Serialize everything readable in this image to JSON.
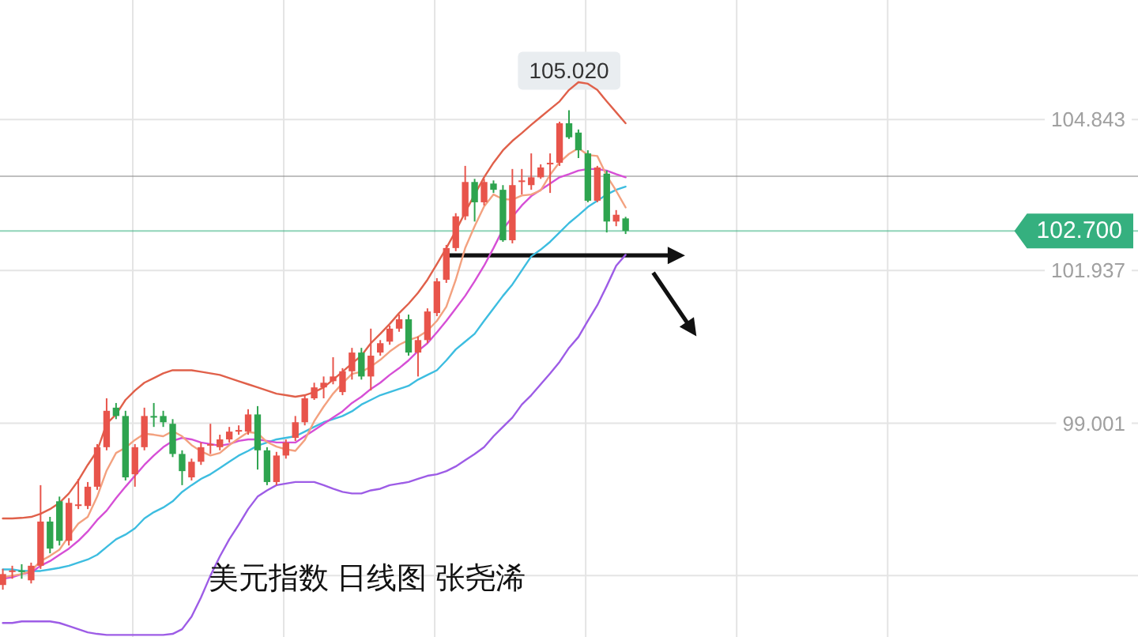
{
  "chart_data": {
    "type": "candlestick",
    "title": "美元指数 日线图 张尧浠",
    "categories": [
      null,
      null,
      null,
      null,
      null,
      null,
      null,
      null,
      null,
      null,
      null,
      null,
      null,
      null,
      null,
      null,
      null,
      null,
      null,
      null,
      null,
      null,
      null,
      null,
      null,
      null,
      null,
      null,
      null,
      null,
      null,
      null,
      null,
      null,
      null,
      null,
      null,
      null,
      null,
      null,
      null,
      null,
      null,
      null,
      null,
      null,
      null,
      null,
      null,
      null,
      null,
      null,
      null,
      null,
      null,
      null,
      null,
      null,
      null,
      null,
      null,
      null,
      null,
      null,
      null,
      null,
      null
    ],
    "ohlc": [
      [
        95.89,
        96.2,
        95.8,
        96.1
      ],
      [
        96.14,
        96.26,
        96.01,
        96.17
      ],
      [
        96.17,
        96.29,
        96.01,
        96.14
      ],
      [
        95.98,
        96.32,
        95.92,
        96.26
      ],
      [
        96.26,
        97.81,
        96.2,
        97.11
      ],
      [
        97.11,
        97.2,
        96.5,
        96.59
      ],
      [
        97.5,
        97.59,
        96.65,
        96.74
      ],
      [
        96.74,
        97.56,
        96.65,
        97.47
      ],
      [
        97.41,
        97.93,
        97.35,
        97.44
      ],
      [
        97.41,
        97.87,
        97.35,
        97.78
      ],
      [
        97.78,
        98.6,
        97.72,
        98.54
      ],
      [
        98.54,
        99.48,
        98.48,
        99.24
      ],
      [
        99.3,
        99.39,
        99.08,
        99.14
      ],
      [
        99.14,
        99.24,
        97.9,
        97.96
      ],
      [
        98.02,
        98.6,
        97.78,
        98.54
      ],
      [
        98.54,
        99.3,
        98.48,
        99.14
      ],
      [
        99.14,
        99.39,
        98.93,
        99.11
      ],
      [
        99.14,
        99.24,
        98.93,
        99.02
      ],
      [
        98.99,
        99.08,
        98.35,
        98.41
      ],
      [
        98.41,
        98.48,
        97.81,
        98.08
      ],
      [
        97.96,
        98.32,
        97.9,
        98.26
      ],
      [
        98.26,
        98.63,
        98.2,
        98.54
      ],
      [
        98.57,
        98.99,
        98.41,
        98.6
      ],
      [
        98.54,
        98.78,
        98.48,
        98.69
      ],
      [
        98.69,
        98.93,
        98.63,
        98.84
      ],
      [
        98.84,
        98.96,
        98.78,
        98.87
      ],
      [
        98.84,
        99.27,
        98.78,
        99.17
      ],
      [
        99.17,
        99.33,
        98.11,
        98.48
      ],
      [
        98.48,
        98.54,
        97.81,
        97.87
      ],
      [
        97.87,
        98.45,
        97.81,
        98.38
      ],
      [
        98.38,
        98.69,
        98.32,
        98.63
      ],
      [
        98.72,
        99.14,
        98.66,
        99.02
      ],
      [
        99.02,
        99.54,
        98.96,
        99.48
      ],
      [
        99.48,
        99.78,
        99.45,
        99.69
      ],
      [
        99.69,
        99.9,
        99.48,
        99.78
      ],
      [
        99.81,
        100.27,
        99.75,
        99.9
      ],
      [
        99.6,
        100.06,
        99.54,
        100.0
      ],
      [
        100.0,
        100.45,
        99.84,
        100.36
      ],
      [
        100.36,
        100.45,
        99.84,
        99.9
      ],
      [
        99.9,
        100.82,
        99.63,
        100.3
      ],
      [
        100.36,
        100.6,
        100.3,
        100.54
      ],
      [
        100.57,
        100.88,
        100.51,
        100.82
      ],
      [
        100.82,
        101.09,
        100.76,
        101.0
      ],
      [
        101.0,
        101.09,
        100.3,
        100.36
      ],
      [
        100.36,
        100.67,
        99.9,
        100.6
      ],
      [
        100.6,
        101.21,
        100.54,
        101.15
      ],
      [
        101.12,
        101.79,
        101.06,
        101.73
      ],
      [
        101.76,
        102.43,
        101.7,
        102.37
      ],
      [
        102.37,
        103.04,
        102.31,
        102.98
      ],
      [
        102.98,
        103.95,
        102.91,
        103.64
      ],
      [
        103.64,
        103.7,
        102.88,
        103.25
      ],
      [
        103.25,
        103.7,
        103.19,
        103.64
      ],
      [
        103.61,
        103.67,
        103.43,
        103.49
      ],
      [
        103.49,
        103.58,
        102.49,
        102.52
      ],
      [
        102.52,
        103.89,
        102.46,
        103.58
      ],
      [
        103.64,
        103.89,
        103.4,
        103.67
      ],
      [
        103.58,
        104.19,
        103.49,
        103.73
      ],
      [
        103.73,
        103.98,
        103.7,
        103.92
      ],
      [
        103.98,
        104.19,
        103.43,
        104.01
      ],
      [
        104.01,
        104.8,
        103.95,
        104.77
      ],
      [
        104.77,
        105.02,
        104.47,
        104.5
      ],
      [
        104.59,
        104.65,
        104.1,
        104.25
      ],
      [
        104.19,
        104.25,
        103.25,
        103.28
      ],
      [
        103.28,
        103.95,
        103.25,
        103.92
      ],
      [
        103.8,
        103.86,
        102.67,
        102.88
      ],
      [
        102.88,
        103.1,
        102.79,
        103.01
      ],
      [
        102.94,
        102.97,
        102.64,
        102.7
      ]
    ],
    "colors": [
      "#e8544b",
      "#e8544b",
      "#2ea44f",
      "#e8544b",
      "#e8544b",
      "#2ea44f",
      "#2ea44f",
      "#e8544b",
      "#e8544b",
      "#e8544b",
      "#e8544b",
      "#e8544b",
      "#2ea44f",
      "#2ea44f",
      "#e8544b",
      "#e8544b",
      "#2ea44f",
      "#2ea44f",
      "#2ea44f",
      "#2ea44f",
      "#e8544b",
      "#e8544b",
      "#e8544b",
      "#e8544b",
      "#e8544b",
      "#e8544b",
      "#e8544b",
      "#2ea44f",
      "#2ea44f",
      "#e8544b",
      "#e8544b",
      "#e8544b",
      "#e8544b",
      "#e8544b",
      "#e8544b",
      "#e8544b",
      "#e8544b",
      "#e8544b",
      "#2ea44f",
      "#e8544b",
      "#e8544b",
      "#e8544b",
      "#e8544b",
      "#2ea44f",
      "#e8544b",
      "#e8544b",
      "#e8544b",
      "#e8544b",
      "#e8544b",
      "#e8544b",
      "#2ea44f",
      "#e8544b",
      "#2ea44f",
      "#2ea44f",
      "#e8544b",
      "#e8544b",
      "#e8544b",
      "#e8544b",
      "#e8544b",
      "#e8544b",
      "#2ea44f",
      "#2ea44f",
      "#2ea44f",
      "#e8544b",
      "#2ea44f",
      "#e8544b",
      "#2ea44f"
    ],
    "series": [
      {
        "type": "line",
        "color": "#e0604a",
        "values": [
          97.17,
          97.17,
          97.18,
          97.2,
          97.26,
          97.35,
          97.47,
          97.65,
          97.9,
          98.2,
          98.47,
          98.99,
          99.17,
          99.45,
          99.63,
          99.78,
          99.87,
          99.96,
          100.02,
          100.02,
          100.02,
          99.99,
          99.96,
          99.93,
          99.87,
          99.81,
          99.75,
          99.69,
          99.63,
          99.57,
          99.54,
          99.51,
          99.54,
          99.6,
          99.69,
          99.84,
          99.99,
          100.15,
          100.3,
          100.54,
          100.72,
          100.91,
          101.12,
          101.3,
          101.51,
          101.76,
          102.06,
          102.37,
          102.7,
          103.06,
          103.4,
          103.73,
          104.01,
          104.25,
          104.43,
          104.58,
          104.74,
          104.89,
          105.04,
          105.19,
          105.41,
          105.56,
          105.53,
          105.41,
          105.19,
          104.98,
          104.77
        ]
      },
      {
        "type": "line",
        "color": "#9d5ce6",
        "values": [
          95.16,
          95.16,
          95.19,
          95.19,
          95.19,
          95.19,
          95.16,
          95.1,
          95.04,
          94.98,
          94.95,
          94.93,
          94.93,
          94.93,
          94.93,
          94.93,
          94.93,
          94.93,
          94.95,
          95.04,
          95.28,
          95.65,
          96.07,
          96.44,
          96.77,
          97.05,
          97.35,
          97.59,
          97.71,
          97.81,
          97.84,
          97.87,
          97.87,
          97.87,
          97.81,
          97.74,
          97.68,
          97.65,
          97.65,
          97.71,
          97.74,
          97.81,
          97.84,
          97.87,
          97.93,
          97.99,
          98.02,
          98.08,
          98.17,
          98.29,
          98.41,
          98.54,
          98.75,
          98.93,
          99.11,
          99.36,
          99.54,
          99.75,
          99.96,
          100.18,
          100.45,
          100.66,
          100.97,
          101.27,
          101.64,
          102.03,
          102.24
        ]
      },
      {
        "type": "line",
        "color": "#3dbde0",
        "values": [
          96.19,
          96.19,
          96.16,
          96.16,
          96.16,
          96.19,
          96.22,
          96.26,
          96.32,
          96.38,
          96.47,
          96.62,
          96.77,
          96.86,
          96.98,
          97.17,
          97.29,
          97.38,
          97.5,
          97.68,
          97.81,
          97.93,
          98.02,
          98.14,
          98.26,
          98.38,
          98.47,
          98.57,
          98.63,
          98.69,
          98.72,
          98.75,
          98.84,
          98.93,
          99.02,
          99.08,
          99.14,
          99.23,
          99.36,
          99.45,
          99.54,
          99.6,
          99.66,
          99.72,
          99.84,
          99.93,
          100.02,
          100.21,
          100.42,
          100.57,
          100.72,
          100.97,
          101.21,
          101.45,
          101.67,
          101.94,
          102.21,
          102.34,
          102.49,
          102.67,
          102.85,
          103.0,
          103.16,
          103.28,
          103.4,
          103.49,
          103.55
        ]
      },
      {
        "type": "line",
        "color": "#d64fd6",
        "values": [
          96.01,
          96.04,
          96.1,
          96.13,
          96.26,
          96.35,
          96.47,
          96.59,
          96.74,
          96.92,
          97.14,
          97.32,
          97.56,
          97.78,
          97.99,
          98.2,
          98.38,
          98.54,
          98.66,
          98.72,
          98.69,
          98.63,
          98.6,
          98.57,
          98.6,
          98.66,
          98.69,
          98.69,
          98.66,
          98.63,
          98.63,
          98.63,
          98.75,
          98.87,
          98.99,
          99.11,
          99.23,
          99.39,
          99.51,
          99.66,
          99.78,
          99.93,
          100.06,
          100.21,
          100.39,
          100.54,
          100.75,
          100.97,
          101.21,
          101.45,
          101.73,
          102.03,
          102.37,
          102.73,
          102.97,
          103.19,
          103.37,
          103.49,
          103.61,
          103.73,
          103.79,
          103.86,
          103.89,
          103.89,
          103.86,
          103.79,
          103.73
        ]
      },
      {
        "type": "line",
        "color": "#f3a17f",
        "values": [
          96.04,
          96.07,
          96.1,
          96.16,
          96.35,
          96.45,
          96.57,
          96.83,
          97.07,
          97.2,
          97.59,
          98.09,
          98.43,
          98.53,
          98.68,
          98.8,
          98.78,
          98.75,
          98.85,
          98.75,
          98.58,
          98.46,
          98.38,
          98.43,
          98.58,
          98.71,
          98.83,
          98.81,
          98.64,
          98.55,
          98.5,
          98.47,
          98.68,
          99.04,
          99.32,
          99.57,
          99.77,
          99.95,
          99.99,
          100.09,
          100.22,
          100.38,
          100.51,
          100.6,
          100.66,
          100.78,
          100.97,
          101.24,
          101.76,
          102.37,
          102.79,
          103.17,
          103.4,
          103.31,
          103.3,
          103.38,
          103.4,
          103.48,
          103.78,
          104.02,
          104.18,
          104.29,
          104.16,
          104.14,
          103.76,
          103.47,
          103.15
        ]
      }
    ],
    "ylim": [
      94.89,
      107.14
    ],
    "yticks": [
      104.843,
      101.937,
      99.001,
      {
        "value": 96.07,
        "label": null
      }
    ],
    "tick_labels": "y",
    "grid": true,
    "ref_lines": [
      {
        "axis": "y",
        "value": 103.75,
        "color": "#8c8c8c"
      },
      {
        "axis": "y",
        "value": 102.7,
        "label": "102.700",
        "color": "#35b07f"
      }
    ],
    "annotations": [
      "105.020"
    ]
  }
}
